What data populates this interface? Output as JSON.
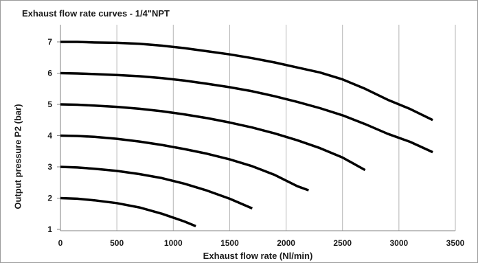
{
  "chart_data": {
    "type": "line",
    "title": "Exhaust flow rate curves - 1/4\"NPT",
    "xlabel": "Exhaust flow rate (Nl/min)",
    "ylabel": "Output pressure P2 (bar)",
    "xlim": [
      0,
      3500
    ],
    "ylim": [
      1,
      7.5
    ],
    "xticks": [
      "0",
      "500",
      "1000",
      "1500",
      "2000",
      "2500",
      "3000",
      "3500"
    ],
    "yticks": [
      "1",
      "2",
      "3",
      "4",
      "5",
      "6",
      "7"
    ],
    "grid": "vertical",
    "series_color": "#000000",
    "grid_color": "#b4b4b4",
    "series": [
      {
        "x": [
          0,
          150,
          300,
          500,
          700,
          900,
          1100,
          1300,
          1500,
          1700,
          1900,
          2100,
          2300,
          2500,
          2700,
          2900,
          3100,
          3300
        ],
        "y": [
          7.0,
          7.0,
          6.98,
          6.97,
          6.94,
          6.88,
          6.8,
          6.7,
          6.6,
          6.48,
          6.34,
          6.18,
          6.02,
          5.8,
          5.5,
          5.15,
          4.85,
          4.5
        ]
      },
      {
        "x": [
          0,
          150,
          300,
          500,
          700,
          900,
          1100,
          1300,
          1500,
          1700,
          1900,
          2100,
          2300,
          2500,
          2700,
          2900,
          3100,
          3300
        ],
        "y": [
          6.0,
          5.99,
          5.97,
          5.94,
          5.9,
          5.84,
          5.76,
          5.66,
          5.55,
          5.42,
          5.26,
          5.08,
          4.88,
          4.65,
          4.37,
          4.06,
          3.8,
          3.47
        ]
      },
      {
        "x": [
          0,
          150,
          300,
          500,
          700,
          900,
          1100,
          1300,
          1500,
          1700,
          1900,
          2100,
          2300,
          2500,
          2700
        ],
        "y": [
          5.0,
          4.99,
          4.96,
          4.92,
          4.86,
          4.78,
          4.68,
          4.56,
          4.42,
          4.26,
          4.07,
          3.85,
          3.6,
          3.3,
          2.9
        ]
      },
      {
        "x": [
          0,
          150,
          300,
          500,
          700,
          900,
          1100,
          1300,
          1500,
          1700,
          1900,
          2100,
          2200
        ],
        "y": [
          4.0,
          3.99,
          3.96,
          3.9,
          3.81,
          3.7,
          3.57,
          3.42,
          3.24,
          3.02,
          2.74,
          2.38,
          2.25
        ]
      },
      {
        "x": [
          0,
          150,
          300,
          500,
          700,
          900,
          1100,
          1300,
          1500,
          1700
        ],
        "y": [
          3.0,
          2.98,
          2.94,
          2.87,
          2.77,
          2.64,
          2.46,
          2.24,
          1.98,
          1.67
        ]
      },
      {
        "x": [
          0,
          150,
          300,
          500,
          700,
          900,
          1100,
          1200
        ],
        "y": [
          2.0,
          1.98,
          1.93,
          1.84,
          1.7,
          1.5,
          1.25,
          1.1
        ]
      }
    ]
  }
}
